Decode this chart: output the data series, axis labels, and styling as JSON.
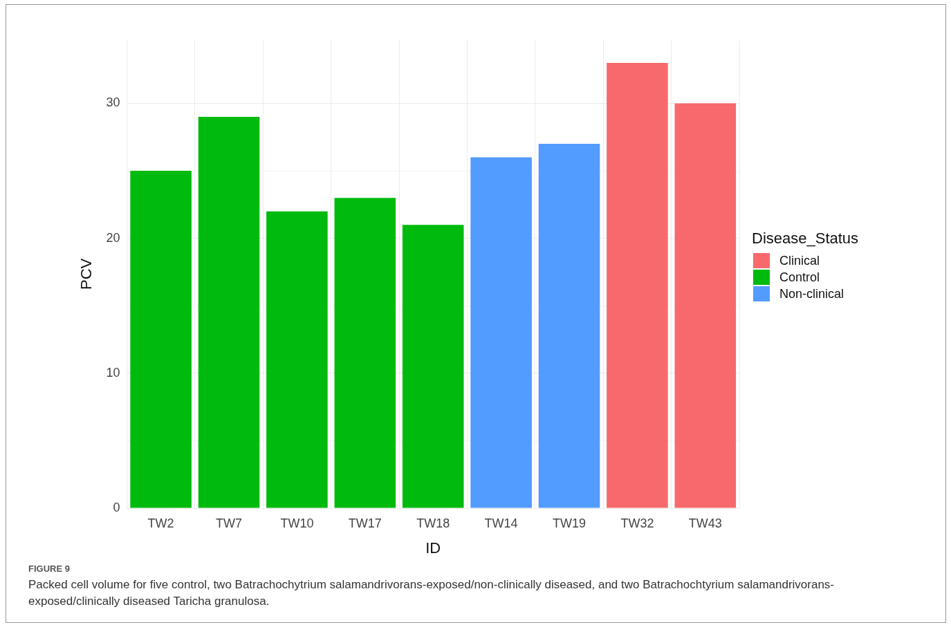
{
  "chart_data": {
    "type": "bar",
    "xlabel": "ID",
    "ylabel": "PCV",
    "legend_title": "Disease_Status",
    "categories": [
      "TW2",
      "TW7",
      "TW10",
      "TW17",
      "TW18",
      "TW14",
      "TW19",
      "TW32",
      "TW43"
    ],
    "series": [
      {
        "name": "Clinical",
        "color": "#f8696b",
        "values": [
          null,
          null,
          null,
          null,
          null,
          null,
          null,
          33,
          30
        ]
      },
      {
        "name": "Control",
        "color": "#00ba0e",
        "values": [
          25,
          29,
          22,
          23,
          21,
          null,
          null,
          null,
          null
        ]
      },
      {
        "name": "Non-clinical",
        "color": "#529bff",
        "values": [
          null,
          null,
          null,
          null,
          null,
          26,
          27,
          null,
          null
        ]
      }
    ],
    "ylim": [
      0,
      34.7
    ],
    "yticks": [
      0,
      {
        "value": 5,
        "label": null
      },
      10,
      {
        "value": 15,
        "label": null
      },
      20,
      {
        "value": 25,
        "label": null
      },
      30
    ],
    "grid": true,
    "legend": "right",
    "annotations": [
      "FIGURE 9",
      "Packed cell volume for five control, two Batrachochytrium salamandrivorans-exposed/non-clinically diseased, and two Batrachochtyrium salamandrivorans- exposed/clinically diseased Taricha granulosa."
    ]
  }
}
